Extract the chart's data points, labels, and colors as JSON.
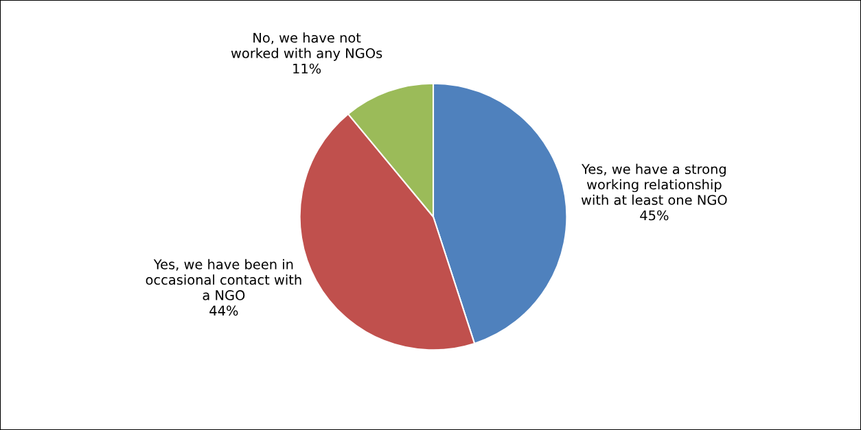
{
  "chart_data": {
    "type": "pie",
    "categories": [
      "Yes, we have a strong\nworking relationship\nwith at least one NGO",
      "Yes, we have been in\noccasional contact with\na NGO",
      "No, we have not\nworked with any NGOs"
    ],
    "values": [
      45,
      44,
      11
    ],
    "value_labels": [
      "45%",
      "44%",
      "11%"
    ],
    "colors": [
      "#4f81bd",
      "#c0504d",
      "#9bbb59"
    ]
  }
}
